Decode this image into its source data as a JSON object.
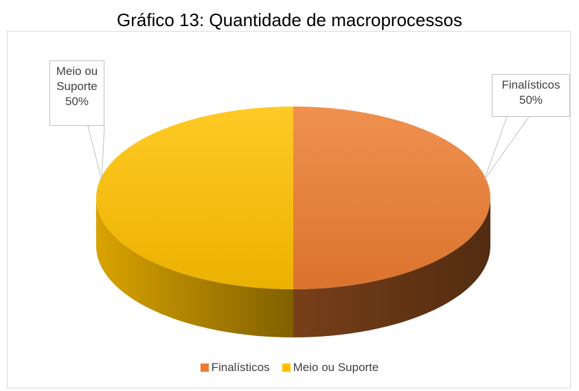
{
  "chart_data": {
    "type": "pie",
    "title": "Gráfico 13: Quantidade de macroprocessos",
    "categories": [
      "Finalísticos",
      "Meio ou Suporte"
    ],
    "values": [
      50,
      50
    ],
    "value_labels": [
      "50%",
      "50%"
    ],
    "colors": [
      "#ED7D31",
      "#FFC000"
    ],
    "legend": "bottom"
  }
}
